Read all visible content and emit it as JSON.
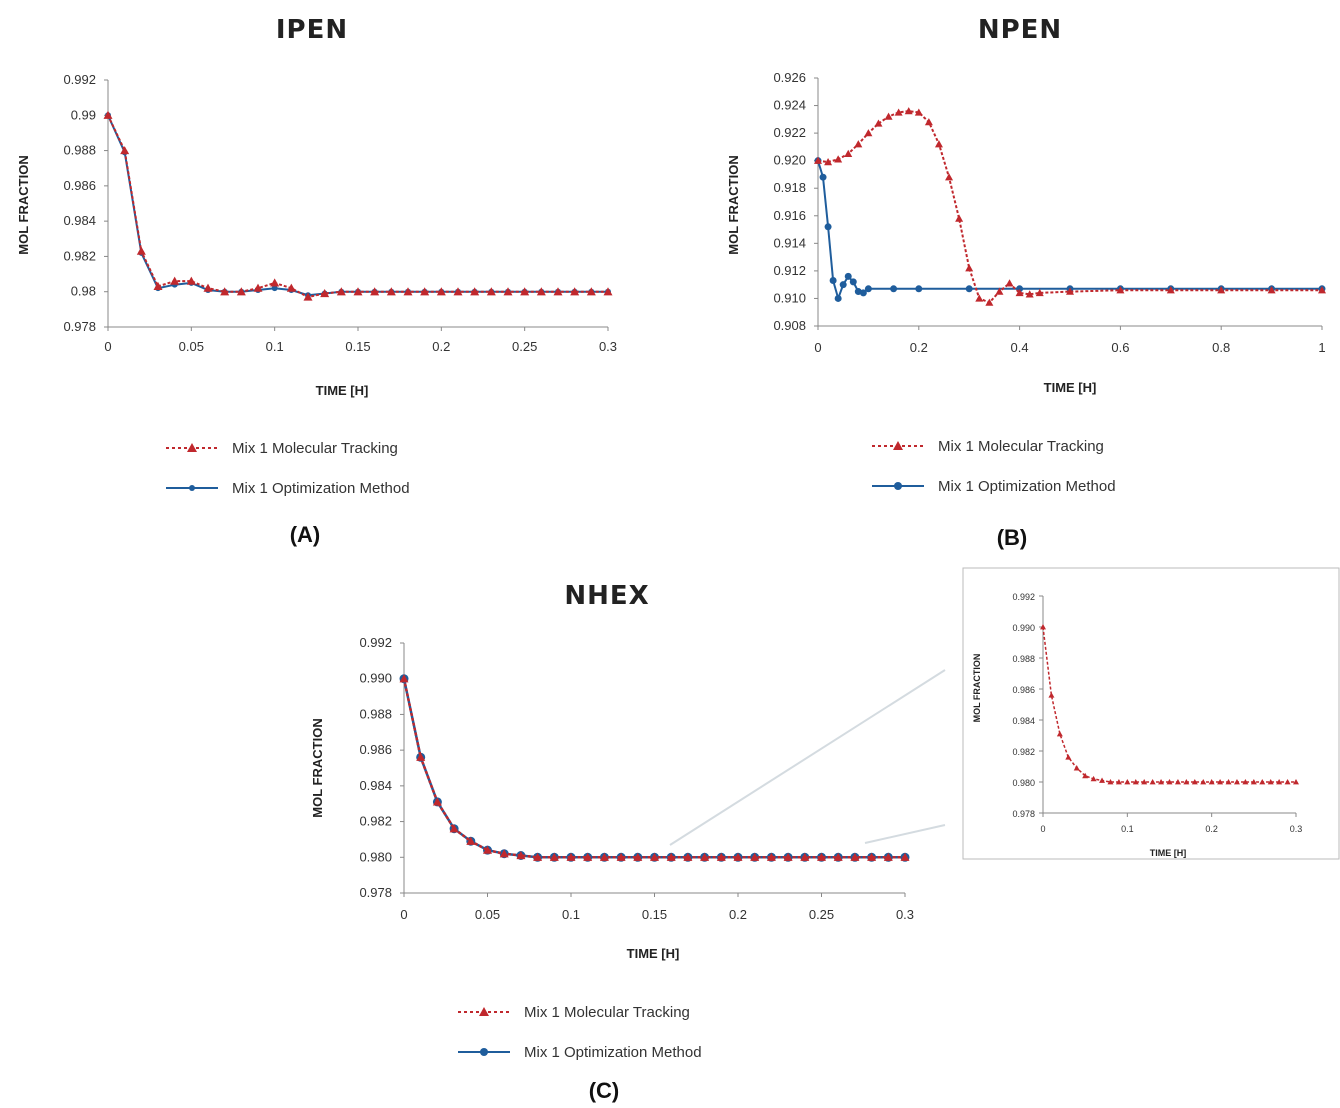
{
  "colors": {
    "tracking": "#c0282d",
    "optimization": "#1f5d9c",
    "axis": "#888888",
    "inset_border": "#bbbbbb"
  },
  "icons": {
    "tracking_marker": "triangle-marker",
    "optimization_marker": "circle-marker"
  },
  "chart_data": [
    {
      "id": "A",
      "type": "line",
      "title": "IPEN",
      "panel_label": "(A)",
      "xlabel": "TIME [H]",
      "ylabel": "MOL FRACTION",
      "xlim": [
        0,
        0.3
      ],
      "ylim": [
        0.978,
        0.992
      ],
      "xticks": [
        0,
        0.05,
        0.1,
        0.15,
        0.2,
        0.25,
        0.3
      ],
      "xtick_labels": [
        "0",
        "0.05",
        "0.1",
        "0.15",
        "0.2",
        "0.25",
        "0.3"
      ],
      "yticks": [
        0.978,
        0.98,
        0.982,
        0.984,
        0.986,
        0.988,
        0.99,
        0.992
      ],
      "ytick_labels": [
        "0.978",
        "0.98",
        "0.982",
        "0.984",
        "0.986",
        "0.988",
        "0.99",
        "0.992"
      ],
      "legend_placement": "bottom",
      "series": [
        {
          "name": "Mix 1 Molecular Tracking",
          "style": "dotted-triangle",
          "x": [
            0,
            0.01,
            0.02,
            0.03,
            0.04,
            0.05,
            0.06,
            0.07,
            0.08,
            0.09,
            0.1,
            0.11,
            0.12,
            0.13,
            0.14,
            0.15,
            0.16,
            0.17,
            0.18,
            0.19,
            0.2,
            0.21,
            0.22,
            0.23,
            0.24,
            0.25,
            0.26,
            0.27,
            0.28,
            0.29,
            0.3
          ],
          "y": [
            0.99,
            0.988,
            0.9823,
            0.9803,
            0.9806,
            0.9806,
            0.9802,
            0.98,
            0.98,
            0.9802,
            0.9805,
            0.9802,
            0.9797,
            0.9799,
            0.98,
            0.98,
            0.98,
            0.98,
            0.98,
            0.98,
            0.98,
            0.98,
            0.98,
            0.98,
            0.98,
            0.98,
            0.98,
            0.98,
            0.98,
            0.98,
            0.98
          ]
        },
        {
          "name": "Mix 1 Optimization Method",
          "style": "solid-circle",
          "x": [
            0,
            0.01,
            0.02,
            0.03,
            0.04,
            0.05,
            0.06,
            0.07,
            0.08,
            0.09,
            0.1,
            0.11,
            0.12,
            0.13,
            0.14,
            0.15,
            0.16,
            0.17,
            0.18,
            0.19,
            0.2,
            0.21,
            0.22,
            0.23,
            0.24,
            0.25,
            0.26,
            0.27,
            0.28,
            0.29,
            0.3
          ],
          "y": [
            0.99,
            0.9879,
            0.9822,
            0.9802,
            0.9804,
            0.9805,
            0.9801,
            0.98,
            0.98,
            0.9801,
            0.9802,
            0.9801,
            0.9798,
            0.9799,
            0.98,
            0.98,
            0.98,
            0.98,
            0.98,
            0.98,
            0.98,
            0.98,
            0.98,
            0.98,
            0.98,
            0.98,
            0.98,
            0.98,
            0.98,
            0.98,
            0.98
          ]
        }
      ]
    },
    {
      "id": "B",
      "type": "line",
      "title": "NPEN",
      "panel_label": "(B)",
      "xlabel": "TIME [H]",
      "ylabel": "MOL FRACTION",
      "xlim": [
        0,
        1
      ],
      "ylim": [
        0.908,
        0.926
      ],
      "xticks": [
        0,
        0.2,
        0.4,
        0.6,
        0.8,
        1
      ],
      "xtick_labels": [
        "0",
        "0.2",
        "0.4",
        "0.6",
        "0.8",
        "1"
      ],
      "yticks": [
        0.908,
        0.91,
        0.912,
        0.914,
        0.916,
        0.918,
        0.92,
        0.922,
        0.924,
        0.926
      ],
      "ytick_labels": [
        "0.908",
        "0.910",
        "0.912",
        "0.914",
        "0.916",
        "0.918",
        "0.920",
        "0.922",
        "0.924",
        "0.926"
      ],
      "legend_placement": "bottom",
      "series": [
        {
          "name": "Mix 1 Molecular Tracking",
          "style": "dotted-triangle",
          "x": [
            0,
            0.02,
            0.04,
            0.06,
            0.08,
            0.1,
            0.12,
            0.14,
            0.16,
            0.18,
            0.2,
            0.22,
            0.24,
            0.26,
            0.28,
            0.3,
            0.32,
            0.34,
            0.36,
            0.38,
            0.4,
            0.42,
            0.44,
            0.5,
            0.6,
            0.7,
            0.8,
            0.9,
            1
          ],
          "y": [
            0.92,
            0.9199,
            0.9201,
            0.9205,
            0.9212,
            0.922,
            0.9227,
            0.9232,
            0.9235,
            0.9236,
            0.9235,
            0.9228,
            0.9212,
            0.9188,
            0.9158,
            0.9122,
            0.91,
            0.9097,
            0.9105,
            0.9111,
            0.9104,
            0.9103,
            0.9104,
            0.9105,
            0.9106,
            0.9106,
            0.9106,
            0.9106,
            0.9106
          ]
        },
        {
          "name": "Mix 1 Optimization Method",
          "style": "solid-circle",
          "x": [
            0,
            0.01,
            0.02,
            0.03,
            0.04,
            0.05,
            0.06,
            0.07,
            0.08,
            0.09,
            0.1,
            0.15,
            0.2,
            0.3,
            0.4,
            0.5,
            0.6,
            0.7,
            0.8,
            0.9,
            1
          ],
          "y": [
            0.92,
            0.9188,
            0.9152,
            0.9113,
            0.91,
            0.911,
            0.9116,
            0.9112,
            0.9105,
            0.9104,
            0.9107,
            0.9107,
            0.9107,
            0.9107,
            0.9107,
            0.9107,
            0.9107,
            0.9107,
            0.9107,
            0.9107,
            0.9107
          ]
        }
      ]
    },
    {
      "id": "C",
      "type": "line",
      "title": "NHEX",
      "panel_label": "(C)",
      "xlabel": "TIME [H]",
      "ylabel": "MOL FRACTION",
      "xlim": [
        0,
        0.3
      ],
      "ylim": [
        0.978,
        0.992
      ],
      "xticks": [
        0,
        0.05,
        0.1,
        0.15,
        0.2,
        0.25,
        0.3
      ],
      "xtick_labels": [
        "0",
        "0.05",
        "0.1",
        "0.15",
        "0.2",
        "0.25",
        "0.3"
      ],
      "yticks": [
        0.978,
        0.98,
        0.982,
        0.984,
        0.986,
        0.988,
        0.99,
        0.992
      ],
      "ytick_labels": [
        "0.978",
        "0.980",
        "0.982",
        "0.984",
        "0.986",
        "0.988",
        "0.990",
        "0.992"
      ],
      "legend_placement": "bottom",
      "series": [
        {
          "name": "Mix 1 Molecular Tracking",
          "style": "dotted-triangle",
          "x": [
            0,
            0.01,
            0.02,
            0.03,
            0.04,
            0.05,
            0.06,
            0.07,
            0.08,
            0.09,
            0.1,
            0.11,
            0.12,
            0.13,
            0.14,
            0.15,
            0.16,
            0.17,
            0.18,
            0.19,
            0.2,
            0.21,
            0.22,
            0.23,
            0.24,
            0.25,
            0.26,
            0.27,
            0.28,
            0.29,
            0.3
          ],
          "y": [
            0.99,
            0.9856,
            0.9831,
            0.9816,
            0.9809,
            0.9804,
            0.9802,
            0.9801,
            0.98,
            0.98,
            0.98,
            0.98,
            0.98,
            0.98,
            0.98,
            0.98,
            0.98,
            0.98,
            0.98,
            0.98,
            0.98,
            0.98,
            0.98,
            0.98,
            0.98,
            0.98,
            0.98,
            0.98,
            0.98,
            0.98,
            0.98
          ]
        },
        {
          "name": "Mix 1 Optimization Method",
          "style": "solid-circle",
          "x": [
            0,
            0.01,
            0.02,
            0.03,
            0.04,
            0.05,
            0.06,
            0.07,
            0.08,
            0.09,
            0.1,
            0.11,
            0.12,
            0.13,
            0.14,
            0.15,
            0.16,
            0.17,
            0.18,
            0.19,
            0.2,
            0.21,
            0.22,
            0.23,
            0.24,
            0.25,
            0.26,
            0.27,
            0.28,
            0.29,
            0.3
          ],
          "y": [
            0.99,
            0.9856,
            0.9831,
            0.9816,
            0.9809,
            0.9804,
            0.9802,
            0.9801,
            0.98,
            0.98,
            0.98,
            0.98,
            0.98,
            0.98,
            0.98,
            0.98,
            0.98,
            0.98,
            0.98,
            0.98,
            0.98,
            0.98,
            0.98,
            0.98,
            0.98,
            0.98,
            0.98,
            0.98,
            0.98,
            0.98,
            0.98
          ]
        }
      ]
    },
    {
      "id": "inset",
      "type": "line",
      "title": "",
      "xlabel": "TIME [H]",
      "ylabel": "MOL FRACTION",
      "xlim": [
        0,
        0.3
      ],
      "ylim": [
        0.978,
        0.992
      ],
      "xticks": [
        0,
        0.1,
        0.2,
        0.3
      ],
      "xtick_labels": [
        "0",
        "0.1",
        "0.2",
        "0.3"
      ],
      "yticks": [
        0.978,
        0.98,
        0.982,
        0.984,
        0.986,
        0.988,
        0.99,
        0.992
      ],
      "ytick_labels": [
        "0.978",
        "0.980",
        "0.982",
        "0.984",
        "0.986",
        "0.988",
        "0.990",
        "0.992"
      ],
      "series": [
        {
          "name": "",
          "style": "dotted-triangle",
          "x": [
            0,
            0.01,
            0.02,
            0.03,
            0.04,
            0.05,
            0.06,
            0.07,
            0.08,
            0.09,
            0.1,
            0.11,
            0.12,
            0.13,
            0.14,
            0.15,
            0.16,
            0.17,
            0.18,
            0.19,
            0.2,
            0.21,
            0.22,
            0.23,
            0.24,
            0.25,
            0.26,
            0.27,
            0.28,
            0.29,
            0.3
          ],
          "y": [
            0.99,
            0.9856,
            0.9831,
            0.9816,
            0.9809,
            0.9804,
            0.9802,
            0.9801,
            0.98,
            0.98,
            0.98,
            0.98,
            0.98,
            0.98,
            0.98,
            0.98,
            0.98,
            0.98,
            0.98,
            0.98,
            0.98,
            0.98,
            0.98,
            0.98,
            0.98,
            0.98,
            0.98,
            0.98,
            0.98,
            0.98,
            0.98
          ]
        }
      ]
    }
  ]
}
